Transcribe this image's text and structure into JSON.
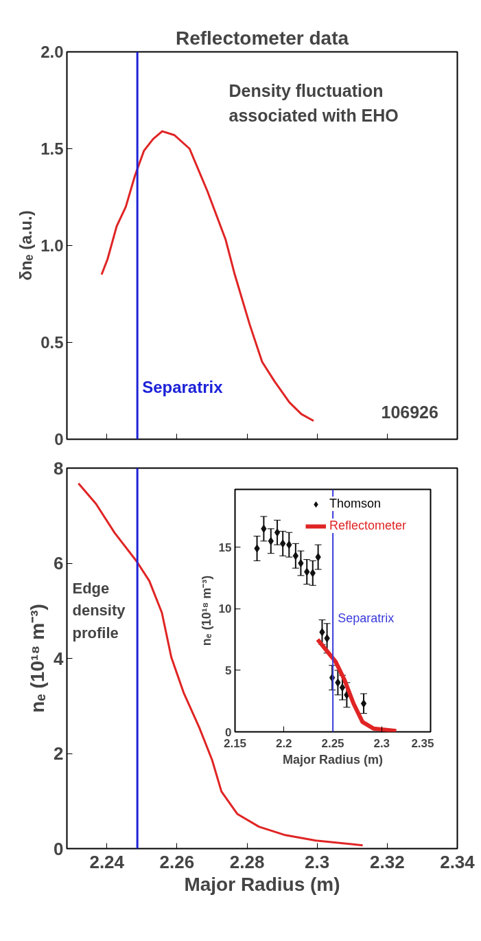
{
  "chart_data": [
    {
      "type": "line",
      "title": "Reflectometer data",
      "ylabel": "δnₑ (a.u.)",
      "xlim": [
        2.2286,
        2.34
      ],
      "xticks": [
        2.24,
        2.26,
        2.28,
        2.3,
        2.32,
        2.34
      ],
      "ylim": [
        0,
        2
      ],
      "yticks": [
        0,
        0.5,
        {
          "value": 1,
          "label": "1.0"
        },
        1.5,
        {
          "value": 2,
          "label": "2.0"
        }
      ],
      "tick_labels": "y",
      "series": [
        {
          "color": "#e02424",
          "x": [
            2.2385,
            2.2402,
            2.2428,
            2.2454,
            2.248,
            2.2506,
            2.2532,
            2.2558,
            2.2593,
            2.2636,
            2.2687,
            2.2739,
            2.2765,
            2.2808,
            2.2843,
            2.2878,
            2.2921,
            2.2955,
            2.299
          ],
          "values": [
            0.85,
            0.93,
            1.1,
            1.2,
            1.36,
            1.49,
            1.55,
            1.59,
            1.57,
            1.5,
            1.28,
            1.03,
            0.85,
            0.59,
            0.4,
            0.3,
            0.19,
            0.13,
            0.095
          ]
        }
      ],
      "ref_lines": [
        {
          "axis": "x",
          "value": 2.2487,
          "label": "Separatrix",
          "color": "#1c22d8"
        }
      ],
      "annotations": [
        "Density fluctuation associated with EHO",
        "106926"
      ]
    },
    {
      "type": "line",
      "xlabel": "Major Radius (m)",
      "ylabel": "nₑ (10¹⁸ m⁻³)",
      "xlim": [
        2.2286,
        2.34
      ],
      "xticks": [
        2.24,
        2.26,
        2.28,
        2.3,
        2.32,
        2.34
      ],
      "ylim": [
        0,
        8
      ],
      "yticks": [
        0,
        2,
        4,
        6,
        8
      ],
      "series": [
        {
          "color": "#e02424",
          "x": [
            2.2319,
            2.2369,
            2.2422,
            2.2485,
            2.2521,
            2.2557,
            2.2584,
            2.2619,
            2.2664,
            2.27,
            2.2727,
            2.2772,
            2.2834,
            2.2906,
            2.2996,
            2.313
          ],
          "values": [
            7.68,
            7.25,
            6.64,
            6.04,
            5.63,
            4.96,
            4.02,
            3.28,
            2.54,
            1.87,
            1.2,
            0.73,
            0.46,
            0.29,
            0.17,
            0.07
          ]
        }
      ],
      "ref_lines": [
        {
          "axis": "x",
          "value": 2.2487,
          "color": "#1c22d8"
        }
      ],
      "annotations": [
        "Edge density profile"
      ]
    },
    {
      "type": "line",
      "xlabel": "Major Radius (m)",
      "ylabel": "nₑ (10¹⁸ m⁻³)",
      "xlim": [
        2.15,
        2.35
      ],
      "xticks": [
        2.15,
        2.2,
        2.25,
        2.3,
        2.35
      ],
      "ylim": [
        0,
        19.7
      ],
      "yticks": [
        0,
        5,
        10,
        15
      ],
      "legend": "top right",
      "series": [
        {
          "name": "Thomson",
          "type": "scatter",
          "marker": "diamond",
          "color": "#111111",
          "x": [
            2.1725,
            2.1794,
            2.1867,
            2.1932,
            2.1989,
            2.2053,
            2.212,
            2.2173,
            2.2235,
            2.2295,
            2.235,
            2.2391,
            2.2441,
            2.2494,
            2.2552,
            2.2598,
            2.2643,
            2.2816
          ],
          "values": [
            14.9,
            16.5,
            15.5,
            16.2,
            15.3,
            15.2,
            14.3,
            13.7,
            13.0,
            12.9,
            14.2,
            8.1,
            7.6,
            4.4,
            4.0,
            3.6,
            3.0,
            2.3
          ],
          "errors": [
            1,
            1,
            1,
            1,
            1,
            1,
            1,
            1,
            1,
            1,
            1,
            1,
            1.2,
            1,
            1,
            1,
            1,
            0.8
          ]
        },
        {
          "name": "Reflectometer",
          "color": "#e02424",
          "x": [
            2.2345,
            2.2437,
            2.2529,
            2.2621,
            2.2712,
            2.2804,
            2.2919,
            2.3149
          ],
          "values": [
            7.5,
            6.6,
            5.7,
            4.2,
            2.3,
            0.8,
            0.26,
            0.07
          ]
        }
      ],
      "ref_lines": [
        {
          "axis": "x",
          "value": 2.2501,
          "label": "Separatrix",
          "color": "#3a3adc"
        }
      ]
    }
  ]
}
